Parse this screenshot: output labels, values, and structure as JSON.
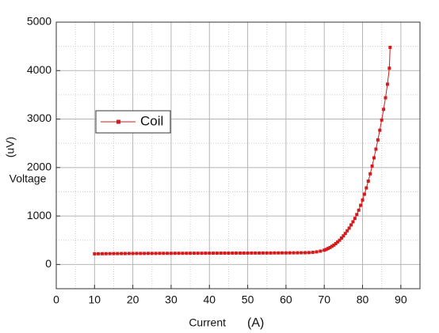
{
  "chart_data": {
    "type": "scatter-line",
    "xlabel": "Current",
    "xlabel_unit": "(A)",
    "ylabel_unit": "(uV)",
    "ylabel": "Voltage",
    "xlim": [
      0,
      95
    ],
    "xticks": [
      0,
      10,
      20,
      30,
      40,
      50,
      60,
      70,
      80,
      90
    ],
    "ylim": [
      -500,
      5000
    ],
    "yticks": [
      0,
      1000,
      2000,
      3000,
      4000,
      5000
    ],
    "grid": true,
    "legend": "upper-left",
    "series": [
      {
        "name": "Coil",
        "color": "#d41a1a",
        "x": [
          10,
          11,
          12,
          13,
          14,
          15,
          16,
          17,
          18,
          19,
          20,
          21,
          22,
          23,
          24,
          25,
          26,
          27,
          28,
          29,
          30,
          31,
          32,
          33,
          34,
          35,
          36,
          37,
          38,
          39,
          40,
          41,
          42,
          43,
          44,
          45,
          46,
          47,
          48,
          49,
          50,
          51,
          52,
          53,
          54,
          55,
          56,
          57,
          58,
          59,
          60,
          61,
          62,
          63,
          64,
          65,
          66,
          67,
          68,
          69,
          70,
          70.5,
          71,
          71.5,
          72,
          72.5,
          73,
          73.5,
          74,
          74.5,
          75,
          75.5,
          76,
          76.5,
          77,
          77.5,
          78,
          78.5,
          79,
          79.5,
          80,
          80.5,
          81,
          81.5,
          82,
          82.5,
          83,
          83.5,
          84,
          84.5,
          85,
          85.5,
          86,
          86.5,
          87,
          87.2
        ],
        "values": [
          220,
          221,
          222,
          223,
          224,
          225,
          225,
          226,
          226,
          227,
          227,
          228,
          228,
          228,
          229,
          229,
          229,
          230,
          230,
          230,
          230,
          231,
          231,
          231,
          231,
          232,
          232,
          232,
          232,
          233,
          233,
          233,
          233,
          234,
          234,
          234,
          234,
          235,
          235,
          235,
          235,
          236,
          236,
          236,
          237,
          237,
          237,
          238,
          238,
          239,
          239,
          240,
          240,
          241,
          242,
          243,
          245,
          250,
          260,
          275,
          295,
          310,
          330,
          350,
          375,
          400,
          430,
          465,
          500,
          545,
          590,
          640,
          695,
          750,
          815,
          880,
          950,
          1030,
          1120,
          1220,
          1330,
          1450,
          1580,
          1720,
          1870,
          2030,
          2200,
          2380,
          2570,
          2770,
          2980,
          3200,
          3440,
          3720,
          4050,
          4480
        ]
      }
    ]
  }
}
